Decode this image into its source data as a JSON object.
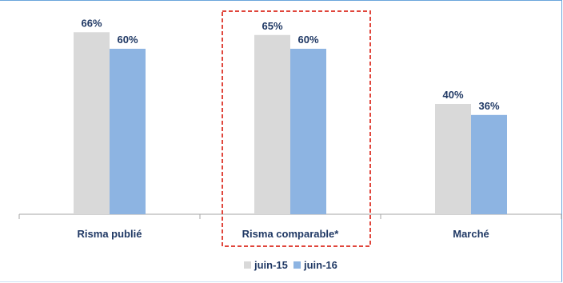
{
  "chart_data": {
    "type": "bar",
    "categories": [
      "Risma publié",
      "Risma comparable*",
      "Marché"
    ],
    "series": [
      {
        "name": "juin-15",
        "values": [
          66,
          65,
          40
        ],
        "color": "#d9d9d9"
      },
      {
        "name": "juin-16",
        "values": [
          60,
          60,
          36
        ],
        "color": "#8db4e2"
      }
    ],
    "value_labels": [
      [
        "66%",
        "65%",
        "40%"
      ],
      [
        "60%",
        "60%",
        "36%"
      ]
    ],
    "ylim": [
      0,
      70
    ],
    "grid": false,
    "legend": "bottom-center",
    "highlighted_category": "Risma comparable*",
    "highlight_color": "#e0463c",
    "label_color": "#1f3864",
    "axis_color": "#a6a6a6"
  }
}
